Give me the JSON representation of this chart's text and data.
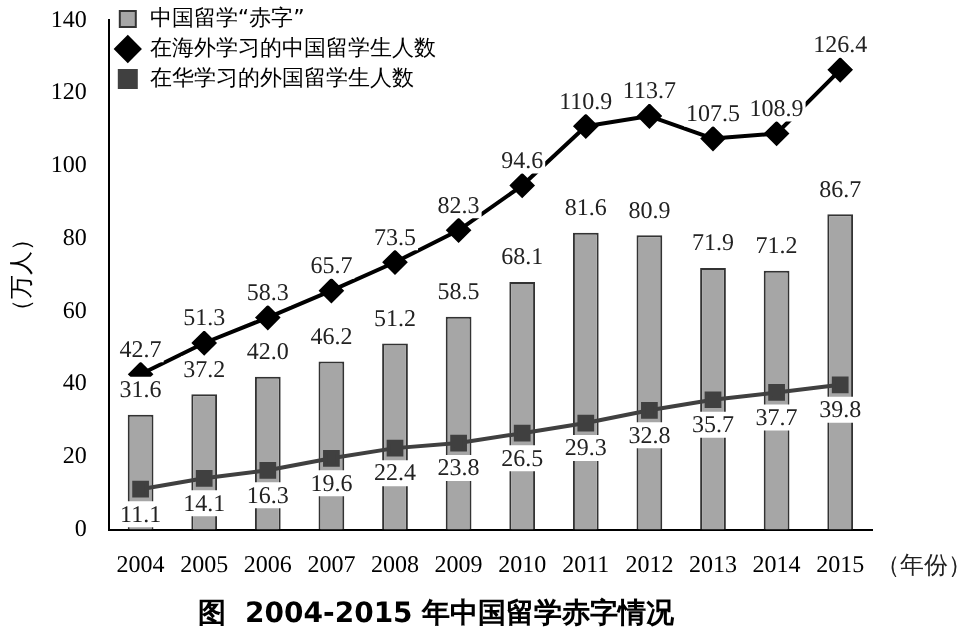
{
  "chart_data": {
    "type": "bar",
    "title": "图  2004-2015 年中国留学赤字情况",
    "xlabel": "（年份）",
    "ylabel": "（万人）",
    "categories": [
      "2004",
      "2005",
      "2006",
      "2007",
      "2008",
      "2009",
      "2010",
      "2011",
      "2012",
      "2013",
      "2014",
      "2015"
    ],
    "series": [
      {
        "name": "中国留学“赤字”",
        "color": "#a6a6a6",
        "values": [
          31.6,
          37.2,
          42.0,
          46.2,
          51.2,
          58.5,
          68.1,
          81.6,
          80.9,
          71.9,
          71.2,
          86.7
        ],
        "value_labels": [
          "31.6",
          "37.2",
          "42.0",
          "46.2",
          "51.2",
          "58.5",
          "68.1",
          "81.6",
          "80.9",
          "71.9",
          "71.2",
          "86.7"
        ]
      },
      {
        "name": "在海外学习的中国留学生人数",
        "type": "line",
        "color": "#000000",
        "marker": "diamond",
        "values": [
          42.7,
          51.3,
          58.3,
          65.7,
          73.5,
          82.3,
          94.6,
          110.9,
          113.7,
          107.5,
          108.9,
          126.4
        ],
        "value_labels": [
          "42.7",
          "51.3",
          "58.3",
          "65.7",
          "73.5",
          "82.3",
          "94.6",
          "110.9",
          "113.7",
          "107.5",
          "108.9",
          "126.4"
        ]
      },
      {
        "name": "在华学习的外国留学生人数",
        "type": "line",
        "color": "#404040",
        "marker": "square",
        "values": [
          11.1,
          14.1,
          16.3,
          19.6,
          22.4,
          23.8,
          26.5,
          29.3,
          32.8,
          35.7,
          37.7,
          39.8
        ],
        "value_labels": [
          "11.1",
          "14.1",
          "16.3",
          "19.6",
          "22.4",
          "23.8",
          "26.5",
          "29.3",
          "32.8",
          "35.7",
          "37.7",
          "39.8"
        ]
      }
    ],
    "ylim": [
      0,
      140
    ],
    "yticks": [
      0,
      20,
      40,
      60,
      80,
      100,
      120,
      140
    ],
    "grid": false,
    "legend": "top left"
  }
}
